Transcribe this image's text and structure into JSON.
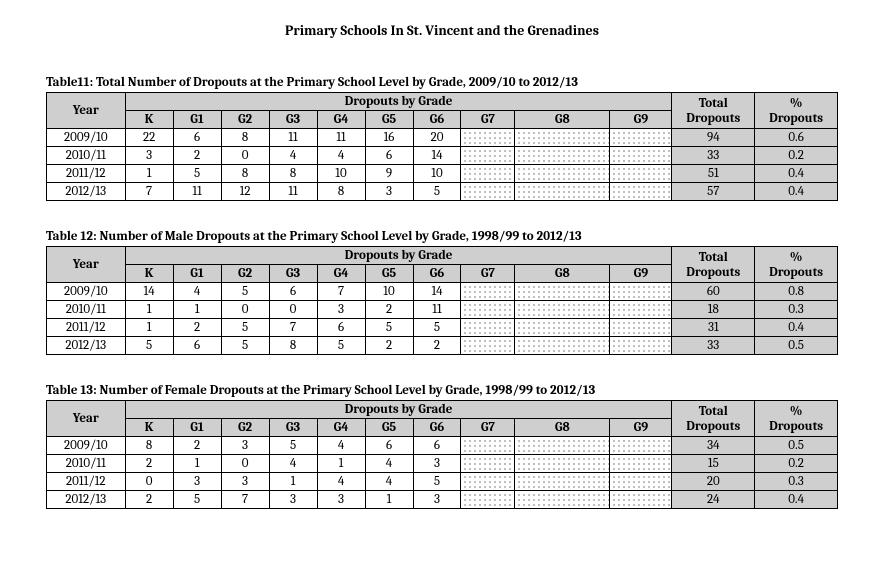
{
  "page": {
    "title": "Primary Schools In St. Vincent and the Grenadines"
  },
  "common": {
    "year_header": "Year",
    "dropouts_group_header": "Dropouts by Grade",
    "total_header": "Total Dropouts",
    "pct_header": "% Dropouts",
    "grade_headers": [
      "K",
      "G1",
      "G2",
      "G3",
      "G4",
      "G5",
      "G6",
      "G7",
      "G8",
      "G9"
    ],
    "shaded_grade_indices": [
      7,
      8,
      9
    ],
    "colors": {
      "header_bg": "#cfcfcf",
      "border": "#000000",
      "text": "#000000",
      "background": "#ffffff"
    },
    "font_family": "Cambria",
    "font_size_pt": 10
  },
  "tables": [
    {
      "caption": "Table11:  Total Number of Dropouts at the Primary School Level by Grade,  2009/10 to 2012/13",
      "rows": [
        {
          "year": "2009/10",
          "grades": [
            "22",
            "6",
            "8",
            "11",
            "11",
            "16",
            "20",
            "",
            "",
            ""
          ],
          "total": "94",
          "pct": "0.6"
        },
        {
          "year": "2010/11",
          "grades": [
            "3",
            "2",
            "0",
            "4",
            "4",
            "6",
            "14",
            "",
            "",
            ""
          ],
          "total": "33",
          "pct": "0.2"
        },
        {
          "year": "2011/12",
          "grades": [
            "1",
            "5",
            "8",
            "8",
            "10",
            "9",
            "10",
            "",
            "",
            ""
          ],
          "total": "51",
          "pct": "0.4"
        },
        {
          "year": "2012/13",
          "grades": [
            "7",
            "11",
            "12",
            "11",
            "8",
            "3",
            "5",
            "",
            "",
            ""
          ],
          "total": "57",
          "pct": "0.4"
        }
      ]
    },
    {
      "caption": "Table 12:   Number of Male Dropouts at the Primary School Level by Grade, 1998/99 to 2012/13",
      "rows": [
        {
          "year": "2009/10",
          "grades": [
            "14",
            "4",
            "5",
            "6",
            "7",
            "10",
            "14",
            "",
            "",
            ""
          ],
          "total": "60",
          "pct": "0.8"
        },
        {
          "year": "2010/11",
          "grades": [
            "1",
            "1",
            "0",
            "0",
            "3",
            "2",
            "11",
            "",
            "",
            ""
          ],
          "total": "18",
          "pct": "0.3"
        },
        {
          "year": "2011/12",
          "grades": [
            "1",
            "2",
            "5",
            "7",
            "6",
            "5",
            "5",
            "",
            "",
            ""
          ],
          "total": "31",
          "pct": "0.4"
        },
        {
          "year": "2012/13",
          "grades": [
            "5",
            "6",
            "5",
            "8",
            "5",
            "2",
            "2",
            "",
            "",
            ""
          ],
          "total": "33",
          "pct": "0.5"
        }
      ]
    },
    {
      "caption": "Table 13:  Number of Female Dropouts at the Primary School Level by Grade,   1998/99 to 2012/13",
      "rows": [
        {
          "year": "2009/10",
          "grades": [
            "8",
            "2",
            "3",
            "5",
            "4",
            "6",
            "6",
            "",
            "",
            ""
          ],
          "total": "34",
          "pct": "0.5"
        },
        {
          "year": "2010/11",
          "grades": [
            "2",
            "1",
            "0",
            "4",
            "1",
            "4",
            "3",
            "",
            "",
            ""
          ],
          "total": "15",
          "pct": "0.2"
        },
        {
          "year": "2011/12",
          "grades": [
            "0",
            "3",
            "3",
            "1",
            "4",
            "4",
            "5",
            "",
            "",
            ""
          ],
          "total": "20",
          "pct": "0.3"
        },
        {
          "year": "2012/13",
          "grades": [
            "2",
            "5",
            "7",
            "3",
            "3",
            "1",
            "3",
            "",
            "",
            ""
          ],
          "total": "24",
          "pct": "0.4"
        }
      ]
    }
  ]
}
